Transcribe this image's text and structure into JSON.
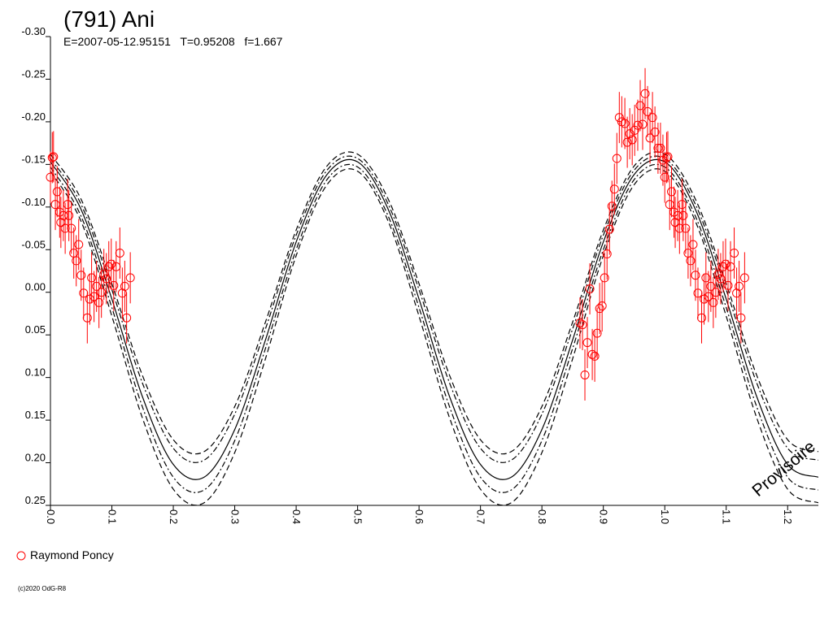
{
  "chart_data": {
    "type": "scatter",
    "title": "(791) Ani",
    "subtitle": "E=2007-05-12.95151   T=0.95208   f=1.667",
    "watermark": "Provisoire",
    "copyright": "(c)2020 OdG-R8",
    "xlim": [
      0,
      1.25
    ],
    "ylim": [
      0.25,
      -0.3
    ],
    "xticks": [
      {
        "value": 0,
        "label": "0.0"
      },
      0.1,
      0.2,
      0.3,
      0.4,
      0.5,
      0.6,
      0.7,
      0.8,
      0.9,
      {
        "value": 1,
        "label": "1.0"
      },
      1.1,
      1.2
    ],
    "yticks": [
      {
        "value": -0.3,
        "label": "-0.30"
      },
      -0.25,
      {
        "value": -0.2,
        "label": "-0.20"
      },
      -0.15,
      {
        "value": -0.1,
        "label": "-0.10"
      },
      -0.05,
      {
        "value": 0,
        "label": "0.00"
      },
      0.05,
      {
        "value": 0.1,
        "label": "0.10"
      },
      0.15,
      {
        "value": 0.2,
        "label": "0.20"
      },
      0.25
    ],
    "series": [
      {
        "name": "Raymond Poncy",
        "color": "#ff0000",
        "error": 0.03,
        "x": [
          0.0,
          0.003,
          0.005,
          0.008,
          0.011,
          0.015,
          0.017,
          0.021,
          0.024,
          0.028,
          0.03,
          0.034,
          0.038,
          0.042,
          0.046,
          0.05,
          0.054,
          0.06,
          0.064,
          0.067,
          0.071,
          0.075,
          0.079,
          0.083,
          0.087,
          0.091,
          0.095,
          0.099,
          0.103,
          0.107,
          0.113,
          0.117,
          0.121,
          0.124,
          0.13,
          0.862,
          0.866,
          0.87,
          0.874,
          0.878,
          0.882,
          0.886,
          0.89,
          0.894,
          0.898,
          0.902,
          0.906,
          0.91,
          0.914,
          0.918,
          0.922,
          0.926,
          0.93,
          0.935,
          0.939,
          0.943,
          0.947,
          0.951,
          0.956,
          0.96,
          0.964,
          0.968,
          0.972,
          0.976,
          0.98,
          0.984,
          0.989,
          0.993,
          0.997,
          1.0,
          1.003,
          1.005,
          1.008,
          1.011,
          1.015,
          1.017,
          1.021,
          1.024,
          1.028,
          1.03,
          1.034,
          1.038,
          1.042,
          1.046,
          1.05,
          1.054,
          1.06,
          1.064,
          1.067,
          1.071,
          1.075,
          1.079,
          1.083,
          1.087,
          1.091,
          1.095,
          1.099,
          1.103,
          1.107,
          1.113,
          1.117,
          1.121,
          1.124,
          1.13
        ],
        "values": [
          -0.135,
          -0.158,
          -0.159,
          -0.103,
          -0.118,
          -0.094,
          -0.082,
          -0.09,
          -0.075,
          -0.103,
          -0.09,
          -0.075,
          -0.046,
          -0.037,
          -0.056,
          -0.02,
          0.001,
          0.03,
          0.008,
          -0.017,
          0.005,
          -0.007,
          0.012,
          0.0,
          -0.021,
          -0.016,
          -0.03,
          -0.033,
          -0.008,
          -0.03,
          -0.046,
          0.001,
          -0.007,
          0.03,
          -0.017,
          0.036,
          0.038,
          0.097,
          0.059,
          -0.004,
          0.073,
          0.075,
          0.048,
          0.019,
          0.016,
          -0.017,
          -0.045,
          -0.074,
          -0.101,
          -0.121,
          -0.157,
          -0.205,
          -0.2,
          -0.198,
          -0.176,
          -0.186,
          -0.179,
          -0.19,
          -0.196,
          -0.219,
          -0.197,
          -0.233,
          -0.212,
          -0.181,
          -0.205,
          -0.188,
          -0.169,
          -0.169,
          -0.155,
          -0.135,
          -0.158,
          -0.159,
          -0.103,
          -0.118,
          -0.094,
          -0.082,
          -0.09,
          -0.075,
          -0.103,
          -0.09,
          -0.075,
          -0.046,
          -0.037,
          -0.056,
          -0.02,
          0.001,
          0.03,
          0.008,
          -0.017,
          0.005,
          -0.007,
          0.012,
          0.0,
          -0.021,
          -0.016,
          -0.03,
          -0.033,
          -0.008,
          -0.03,
          -0.046,
          0.001,
          -0.007,
          0.03,
          -0.017
        ]
      }
    ],
    "curve_x": [
      0,
      0.05,
      0.1,
      0.15,
      0.2,
      0.25,
      0.3,
      0.35,
      0.4,
      0.45,
      0.5,
      0.55,
      0.6,
      0.65,
      0.7,
      0.75,
      0.8,
      0.85,
      0.9,
      0.95,
      1,
      1.05,
      1.1,
      1.15,
      1.2,
      1.25
    ],
    "curves": [
      {
        "style": "dashed",
        "values": [
          -0.162,
          -0.109,
          -0.01,
          0.098,
          0.173,
          0.187,
          0.134,
          0.035,
          -0.073,
          -0.148,
          -0.162,
          -0.109,
          -0.01,
          0.098,
          0.173,
          0.187,
          0.134,
          0.035,
          -0.073,
          -0.148,
          -0.162,
          -0.109,
          -0.01,
          0.098,
          0.173,
          0.187
        ]
      },
      {
        "style": "dashdot",
        "values": [
          -0.157,
          -0.103,
          -0.003,
          0.107,
          0.183,
          0.197,
          0.143,
          0.043,
          -0.067,
          -0.143,
          -0.157,
          -0.103,
          -0.003,
          0.107,
          0.183,
          0.197,
          0.143,
          0.043,
          -0.067,
          -0.143,
          -0.157,
          -0.103,
          -0.003,
          0.107,
          0.183,
          0.197
        ]
      },
      {
        "style": "solid",
        "values": [
          -0.153,
          -0.097,
          0.008,
          0.123,
          0.202,
          0.217,
          0.161,
          0.056,
          -0.059,
          -0.138,
          -0.153,
          -0.097,
          0.008,
          0.123,
          0.202,
          0.217,
          0.161,
          0.056,
          -0.059,
          -0.138,
          -0.153,
          -0.097,
          0.008,
          0.123,
          0.202,
          0.217
        ]
      },
      {
        "style": "dashdot",
        "values": [
          -0.147,
          -0.089,
          0.018,
          0.135,
          0.217,
          0.232,
          0.174,
          0.066,
          -0.05,
          -0.132,
          -0.147,
          -0.089,
          0.018,
          0.135,
          0.217,
          0.232,
          0.174,
          0.066,
          -0.05,
          -0.132,
          -0.147,
          -0.089,
          0.018,
          0.135,
          0.217,
          0.232
        ]
      },
      {
        "style": "dashed",
        "values": [
          -0.142,
          -0.083,
          0.028,
          0.148,
          0.231,
          0.247,
          0.188,
          0.078,
          -0.043,
          -0.126,
          -0.142,
          -0.083,
          0.028,
          0.148,
          0.231,
          0.247,
          0.188,
          0.078,
          -0.043,
          -0.126,
          -0.142,
          -0.083,
          0.028,
          0.148,
          0.231,
          0.247
        ]
      }
    ]
  }
}
